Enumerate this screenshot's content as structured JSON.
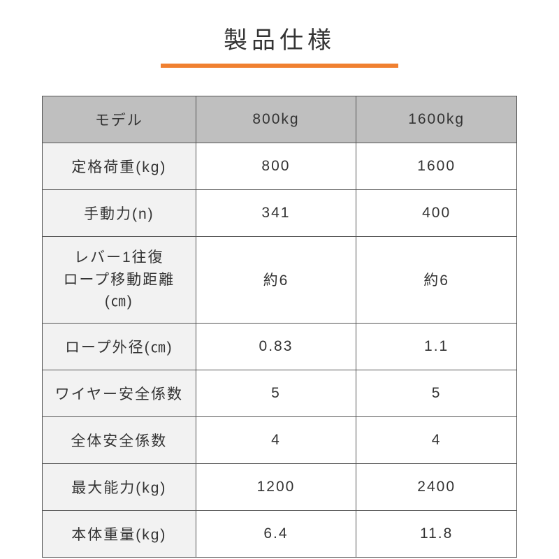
{
  "title": "製品仕様",
  "colors": {
    "accent": "#f08030",
    "header_bg": "#bfbfbf",
    "label_bg": "#f2f2f2",
    "border": "#555555",
    "text": "#333333",
    "bg": "#ffffff"
  },
  "table": {
    "columns": [
      "モデル",
      "800kg",
      "1600kg"
    ],
    "rows": [
      {
        "label": "定格荷重(kg)",
        "val1": "800",
        "val2": "1600"
      },
      {
        "label": "手動力(n)",
        "val1": "341",
        "val2": "400"
      },
      {
        "label": "レバー1往復\nロープ移動距離\n(㎝)",
        "val1": "約6",
        "val2": "約6",
        "multiline": true
      },
      {
        "label": "ロープ外径(㎝)",
        "val1": "0.83",
        "val2": "1.1"
      },
      {
        "label": "ワイヤー安全係数",
        "val1": "5",
        "val2": "5"
      },
      {
        "label": "全体安全係数",
        "val1": "4",
        "val2": "4"
      },
      {
        "label": "最大能力(kg)",
        "val1": "1200",
        "val2": "2400"
      },
      {
        "label": "本体重量(kg)",
        "val1": "6.4",
        "val2": "11.8"
      }
    ]
  }
}
